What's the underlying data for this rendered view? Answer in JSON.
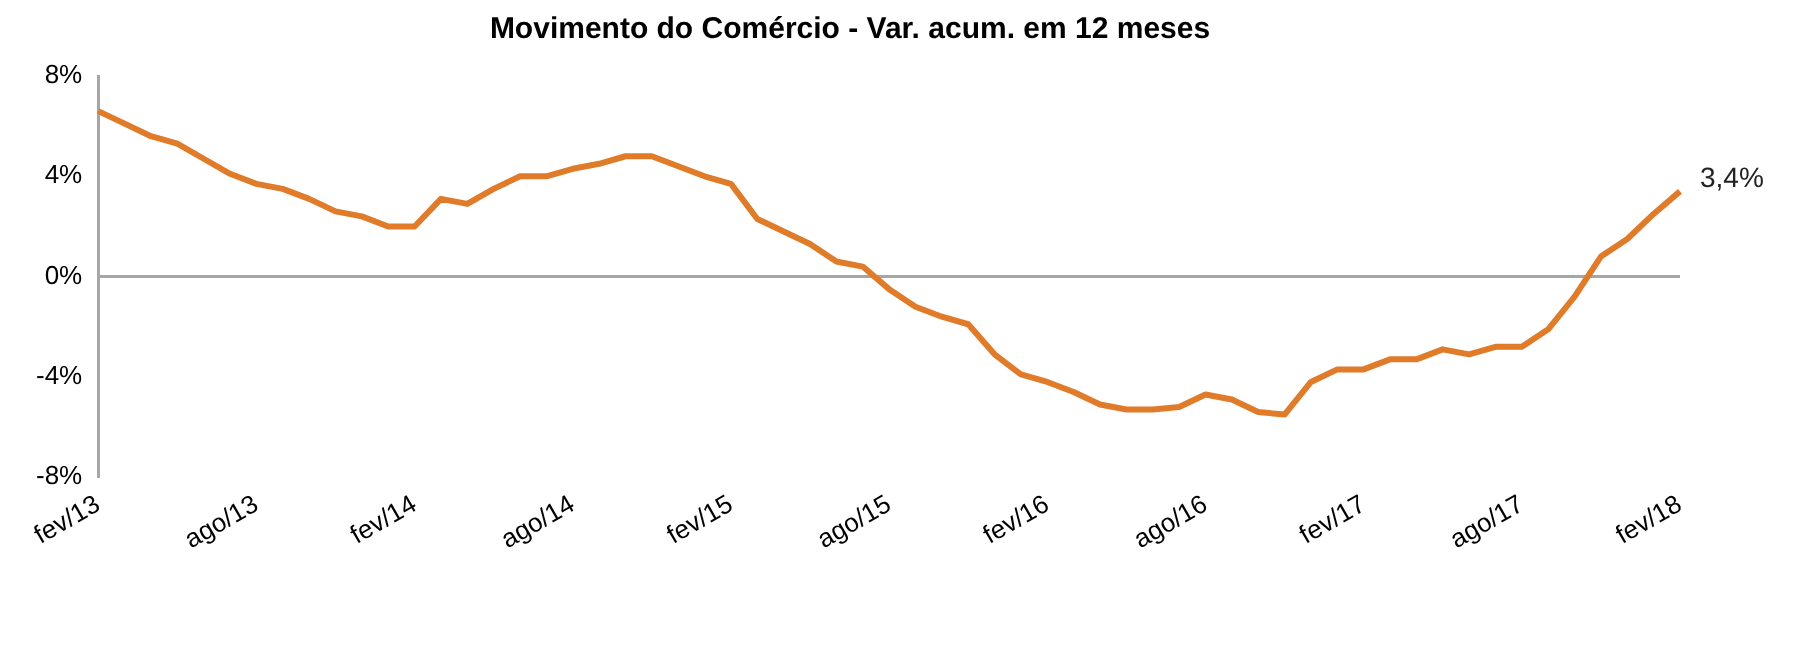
{
  "chart_data": {
    "type": "line",
    "title": "Movimento do Comércio - Var. acum. em 12 meses",
    "categories": [
      "fev/13",
      null,
      null,
      null,
      null,
      null,
      "ago/13",
      null,
      null,
      null,
      null,
      null,
      "fev/14",
      null,
      null,
      null,
      null,
      null,
      "ago/14",
      null,
      null,
      null,
      null,
      null,
      "fev/15",
      null,
      null,
      null,
      null,
      null,
      "ago/15",
      null,
      null,
      null,
      null,
      null,
      "fev/16",
      null,
      null,
      null,
      null,
      null,
      "ago/16",
      null,
      null,
      null,
      null,
      null,
      "fev/17",
      null,
      null,
      null,
      null,
      null,
      "ago/17",
      null,
      null,
      null,
      null,
      null,
      "fev/18"
    ],
    "series": [
      {
        "color": "#e07b2a",
        "values": [
          6.6,
          6.1,
          5.6,
          5.3,
          4.7,
          4.1,
          3.7,
          3.5,
          3.1,
          2.6,
          2.4,
          2.0,
          2.0,
          3.1,
          2.9,
          3.5,
          4.0,
          4.0,
          4.3,
          4.5,
          4.8,
          4.8,
          4.4,
          4.0,
          3.7,
          2.3,
          1.8,
          1.3,
          0.6,
          0.4,
          -0.5,
          -1.2,
          -1.6,
          -1.9,
          -3.1,
          -3.9,
          -4.2,
          -4.6,
          -5.1,
          -5.3,
          -5.3,
          -5.2,
          -4.7,
          -4.9,
          -5.4,
          -5.5,
          -4.2,
          -3.7,
          -3.7,
          -3.3,
          -3.3,
          -2.9,
          -3.1,
          -2.8,
          -2.8,
          -2.1,
          -0.8,
          0.8,
          1.5,
          2.5,
          3.4
        ]
      }
    ],
    "ylim": [
      -8,
      8
    ],
    "yticks": [
      {
        "value": -8,
        "label": "-8%"
      },
      {
        "value": -4,
        "label": "-4%"
      },
      {
        "value": 0,
        "label": "0%"
      },
      {
        "value": 4,
        "label": "4%"
      },
      {
        "value": 8,
        "label": "8%"
      }
    ],
    "ref_lines": [
      {
        "axis": "y",
        "value": 0,
        "color": "#a6a6a6"
      }
    ],
    "annotations": [
      {
        "text": "3,4%",
        "x": "fev/18",
        "y": 3.4
      }
    ],
    "grid": false,
    "legend": false,
    "marker": "none",
    "line_style": "solid"
  }
}
